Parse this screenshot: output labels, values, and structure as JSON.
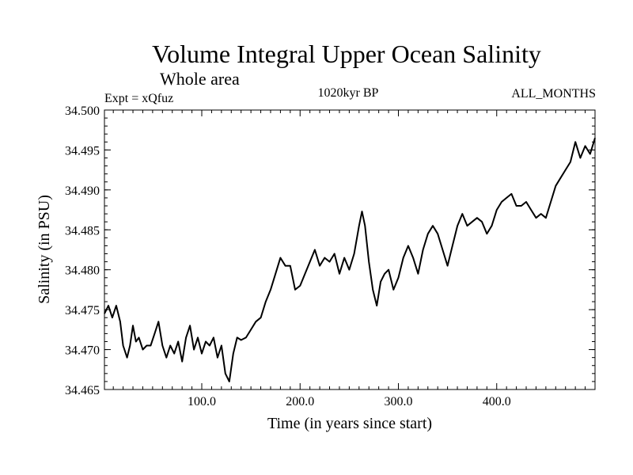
{
  "chart_data": {
    "type": "line",
    "title": "Volume Integral Upper Ocean Salinity",
    "subtitle": "Whole area",
    "annotations": {
      "left": "Expt = xQfuz",
      "center": "1020kyr BP",
      "right": "ALL_MONTHS"
    },
    "xlabel": "Time (in years since start)",
    "ylabel": "Salinity (in PSU)",
    "xlim": [
      1,
      500
    ],
    "ylim": [
      34.465,
      34.5
    ],
    "x_ticks": [
      100,
      200,
      300,
      400
    ],
    "x_tick_labels": [
      "100.0",
      "200.0",
      "300.0",
      "400.0"
    ],
    "y_ticks": [
      34.465,
      34.47,
      34.475,
      34.48,
      34.485,
      34.49,
      34.495,
      34.5
    ],
    "y_tick_labels": [
      "34.465",
      "34.470",
      "34.475",
      "34.480",
      "34.485",
      "34.490",
      "34.495",
      "34.500"
    ],
    "grid": false,
    "series": [
      {
        "name": "Salinity",
        "color": "#000000",
        "x": [
          1,
          5,
          9,
          13,
          17,
          20,
          24,
          27,
          30,
          33,
          36,
          40,
          44,
          48,
          52,
          56,
          60,
          64,
          68,
          72,
          76,
          80,
          84,
          88,
          92,
          96,
          100,
          104,
          108,
          112,
          116,
          120,
          124,
          128,
          132,
          136,
          140,
          145,
          150,
          155,
          160,
          165,
          170,
          175,
          180,
          185,
          190,
          195,
          200,
          205,
          210,
          215,
          220,
          225,
          230,
          235,
          240,
          245,
          250,
          255,
          260,
          263,
          266,
          270,
          274,
          278,
          282,
          286,
          290,
          295,
          300,
          305,
          310,
          315,
          320,
          325,
          330,
          335,
          340,
          345,
          350,
          355,
          360,
          365,
          370,
          375,
          380,
          385,
          390,
          395,
          400,
          405,
          410,
          415,
          420,
          425,
          430,
          435,
          440,
          445,
          450,
          455,
          460,
          465,
          470,
          475,
          480,
          485,
          490,
          495,
          500
        ],
        "y": [
          34.4745,
          34.4755,
          34.474,
          34.4755,
          34.4735,
          34.4705,
          34.469,
          34.4705,
          34.473,
          34.471,
          34.4715,
          34.47,
          34.4705,
          34.4705,
          34.472,
          34.4735,
          34.4705,
          34.469,
          34.4705,
          34.4695,
          34.471,
          34.4685,
          34.4715,
          34.473,
          34.47,
          34.4715,
          34.4695,
          34.471,
          34.4705,
          34.4715,
          34.469,
          34.4705,
          34.467,
          34.466,
          34.4695,
          34.4715,
          34.4712,
          34.4715,
          34.4725,
          34.4735,
          34.474,
          34.476,
          34.4775,
          34.4795,
          34.4815,
          34.4805,
          34.4805,
          34.4775,
          34.478,
          34.4795,
          34.481,
          34.4825,
          34.4805,
          34.4815,
          34.481,
          34.482,
          34.4795,
          34.4815,
          34.48,
          34.482,
          34.4855,
          34.4873,
          34.4855,
          34.481,
          34.4775,
          34.4755,
          34.4785,
          34.4795,
          34.48,
          34.4775,
          34.479,
          34.4815,
          34.483,
          34.4815,
          34.4795,
          34.4825,
          34.4845,
          34.4855,
          34.4845,
          34.4825,
          34.4805,
          34.483,
          34.4855,
          34.487,
          34.4855,
          34.486,
          34.4865,
          34.486,
          34.4845,
          34.4855,
          34.4875,
          34.4885,
          34.489,
          34.4895,
          34.488,
          34.488,
          34.4885,
          34.4875,
          34.4865,
          34.487,
          34.4865,
          34.4885,
          34.4905,
          34.4915,
          34.4925,
          34.4935,
          34.496,
          34.494,
          34.4955,
          34.4945,
          34.4965
        ]
      }
    ]
  }
}
